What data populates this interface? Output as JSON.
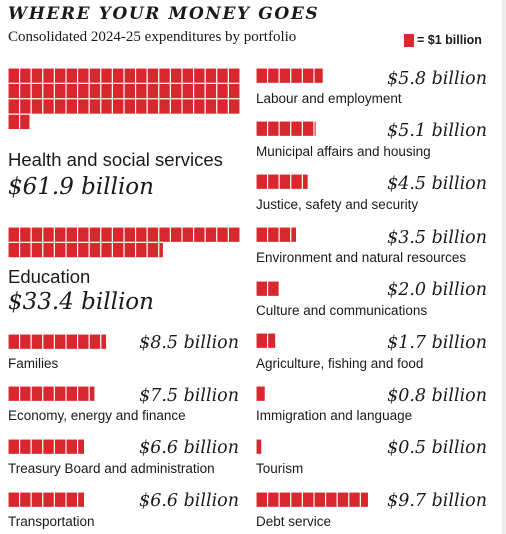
{
  "colors": {
    "block": "#d9272e",
    "block_border": "#ffffff",
    "text": "#1a1a1a",
    "background": "#ffffff"
  },
  "chart_data": {
    "type": "bar",
    "title": "WHERE YOUR MONEY GOES",
    "subtitle": "Consolidated 2024-25 expenditures by portfolio",
    "legend": {
      "label": "= $1 billion",
      "placement": "top-right"
    },
    "unit": "$ billion",
    "categories": [
      "Health and social services",
      "Education",
      "Families",
      "Economy, energy and finance",
      "Treasury Board and administration",
      "Transportation",
      "Labour and employment",
      "Municipal affairs and housing",
      "Justice, safety and security",
      "Environment and natural resources",
      "Culture and communications",
      "Agriculture, fishing and food",
      "Immigration and language",
      "Tourism",
      "Debt service"
    ],
    "values": [
      61.9,
      33.4,
      8.5,
      7.5,
      6.6,
      6.6,
      5.8,
      5.1,
      4.5,
      3.5,
      2.0,
      1.7,
      0.8,
      0.5,
      9.7
    ],
    "value_labels": [
      "$61.9 billion",
      "$33.4 billion",
      "$8.5 billion",
      "$7.5 billion",
      "$6.6 billion",
      "$6.6 billion",
      "$5.8 billion",
      "$5.1 billion",
      "$4.5 billion",
      "$3.5 billion",
      "$2.0 billion",
      "$1.7 billion",
      "$0.8 billion",
      "$0.5 billion",
      "$9.7 billion"
    ]
  }
}
